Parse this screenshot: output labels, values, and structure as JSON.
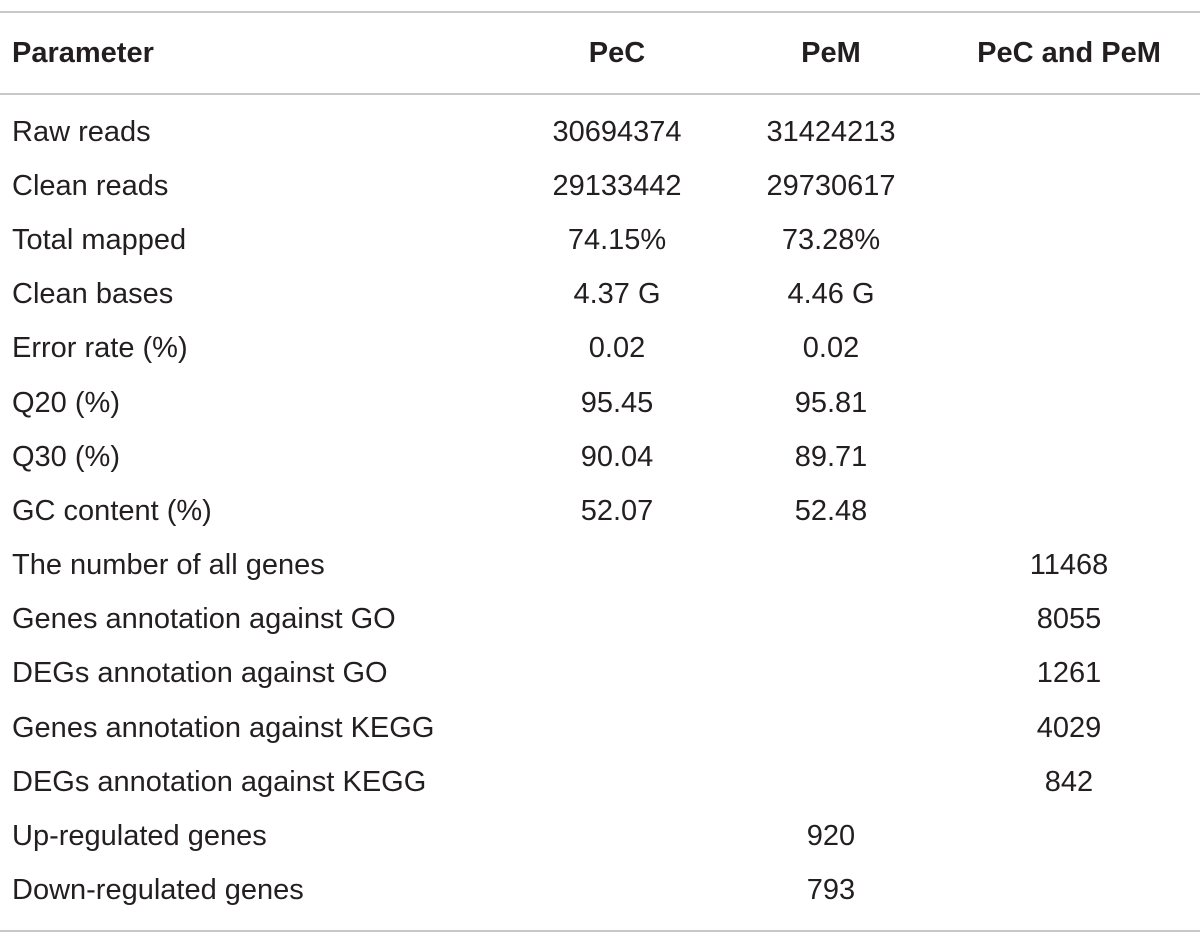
{
  "table": {
    "headers": {
      "parameter": "Parameter",
      "pec": "PeC",
      "pem": "PeM",
      "both": "PeC and PeM"
    },
    "rows": [
      {
        "parameter": "Raw reads",
        "pec": "30694374",
        "pem": "31424213",
        "both": ""
      },
      {
        "parameter": "Clean reads",
        "pec": "29133442",
        "pem": "29730617",
        "both": ""
      },
      {
        "parameter": "Total mapped",
        "pec": "74.15%",
        "pem": "73.28%",
        "both": ""
      },
      {
        "parameter": "Clean bases",
        "pec": "4.37 G",
        "pem": "4.46 G",
        "both": ""
      },
      {
        "parameter": "Error rate (%)",
        "pec": "0.02",
        "pem": "0.02",
        "both": ""
      },
      {
        "parameter": "Q20 (%)",
        "pec": "95.45",
        "pem": "95.81",
        "both": ""
      },
      {
        "parameter": "Q30 (%)",
        "pec": "90.04",
        "pem": "89.71",
        "both": ""
      },
      {
        "parameter": "GC content (%)",
        "pec": "52.07",
        "pem": "52.48",
        "both": ""
      },
      {
        "parameter": "The number of all genes",
        "pec": "",
        "pem": "",
        "both": "11468"
      },
      {
        "parameter": "Genes annotation against GO",
        "pec": "",
        "pem": "",
        "both": "8055"
      },
      {
        "parameter": "DEGs annotation against GO",
        "pec": "",
        "pem": "",
        "both": "1261"
      },
      {
        "parameter": "Genes annotation against KEGG",
        "pec": "",
        "pem": "",
        "both": "4029"
      },
      {
        "parameter": "DEGs annotation against KEGG",
        "pec": "",
        "pem": "",
        "both": "842"
      },
      {
        "parameter": "Up-regulated genes",
        "pec": "",
        "pem": "920",
        "both": ""
      },
      {
        "parameter": "Down-regulated genes",
        "pec": "",
        "pem": "793",
        "both": ""
      }
    ]
  }
}
